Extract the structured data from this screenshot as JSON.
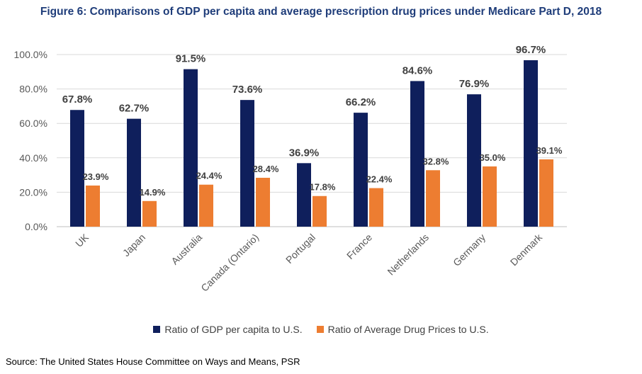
{
  "title": "Figure 6: Comparisons of GDP per capita and average prescription drug prices under Medicare Part D, 2018",
  "source": "Source: The United States House Committee on Ways and Means, PSR",
  "chart_data": {
    "type": "bar",
    "categories": [
      "UK",
      "Japan",
      "Australia",
      "Canada (Ontario)",
      "Portugal",
      "France",
      "Netherlands",
      "Germany",
      "Denmark"
    ],
    "series": [
      {
        "name": "Ratio of GDP per capita to U.S.",
        "color": "#0f1f5c",
        "values": [
          67.8,
          62.7,
          91.5,
          73.6,
          36.9,
          66.2,
          84.6,
          76.9,
          96.7
        ],
        "labels": [
          "67.8%",
          "62.7%",
          "91.5%",
          "73.6%",
          "36.9%",
          "66.2%",
          "84.6%",
          "76.9%",
          "96.7%"
        ]
      },
      {
        "name": "Ratio of Average Drug Prices to U.S.",
        "color": "#ed7d31",
        "values": [
          23.9,
          14.9,
          24.4,
          28.4,
          17.8,
          22.4,
          32.8,
          35.0,
          39.1
        ],
        "labels": [
          "23.9%",
          "14.9%",
          "24.4%",
          "28.4%",
          "17.8%",
          "22.4%",
          "32.8%",
          "35.0%",
          "39.1%"
        ]
      }
    ],
    "ylim": [
      0,
      100
    ],
    "yticks": [
      0,
      20,
      40,
      60,
      80,
      100
    ],
    "ytick_labels": [
      "0.0%",
      "20.0%",
      "40.0%",
      "60.0%",
      "80.0%",
      "100.0%"
    ],
    "grid": true,
    "legend_position": "bottom"
  }
}
